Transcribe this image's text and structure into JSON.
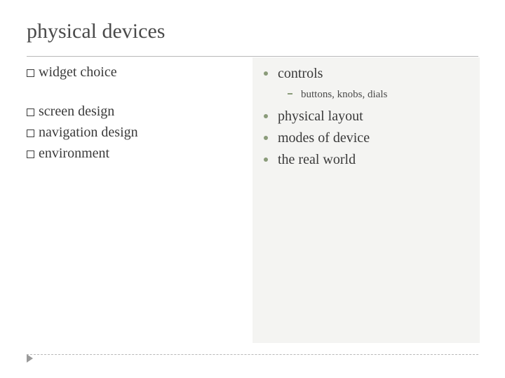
{
  "title": "physical devices",
  "colors": {
    "background": "#ffffff",
    "panel_bg": "#f4f4f2",
    "text": "#3a3a3a",
    "rule": "#b8b8b8",
    "bullet_accent": "#8a9b7a",
    "marker": "#9a9a9a"
  },
  "typography": {
    "title_fontsize_pt": 30,
    "body_fontsize_pt": 20,
    "sub_fontsize_pt": 15,
    "font_family": "Georgia, serif"
  },
  "left_column": {
    "items_top": [
      {
        "label": "widget choice"
      }
    ],
    "items_bottom": [
      {
        "label": "screen design"
      },
      {
        "label": "navigation design"
      },
      {
        "label": "environment"
      }
    ]
  },
  "right_panel": {
    "items": [
      {
        "label": "controls",
        "sub": [
          {
            "label": "buttons, knobs, dials"
          }
        ]
      },
      {
        "label": "physical layout"
      },
      {
        "label": "modes of device"
      },
      {
        "label": "the real world"
      }
    ]
  }
}
